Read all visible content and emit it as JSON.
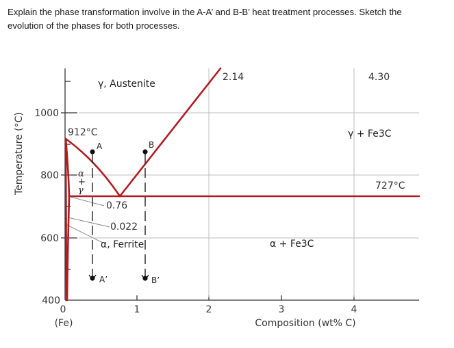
{
  "question": {
    "line1": "Explain the phase transformation involve in the A-A’ and B-B’ heat treatment processes. Sketch the",
    "line2": "evolution of the phases for both processes."
  },
  "colors": {
    "phase_line": "#b01c22",
    "axis": "#333333"
  },
  "axes": {
    "y_label": "Temperature (°C)",
    "x_label": "Composition (wt% C)",
    "y_ticks": [
      "400",
      "600",
      "800",
      "1000"
    ],
    "x_ticks": [
      "0",
      "1",
      "2",
      "3",
      "4"
    ],
    "x_sub": "(Fe)"
  },
  "regions": {
    "gamma": "γ, Austenite",
    "alpha_ferrite": "α, Ferrite",
    "gamma_fe3c": "γ + Fe3C",
    "alpha_fe3c": "α + Fe3C",
    "alpha": "α",
    "plus": "+",
    "gamma_small": "γ"
  },
  "labels": {
    "t912": "912°C",
    "t727": "727°C",
    "c214": "2.14",
    "c430": "4.30",
    "c076": "0.76",
    "c0022": "0.022"
  },
  "paths": {
    "A_start": "A",
    "A_end": "A’",
    "B_start": "B",
    "B_end": "B’"
  }
}
